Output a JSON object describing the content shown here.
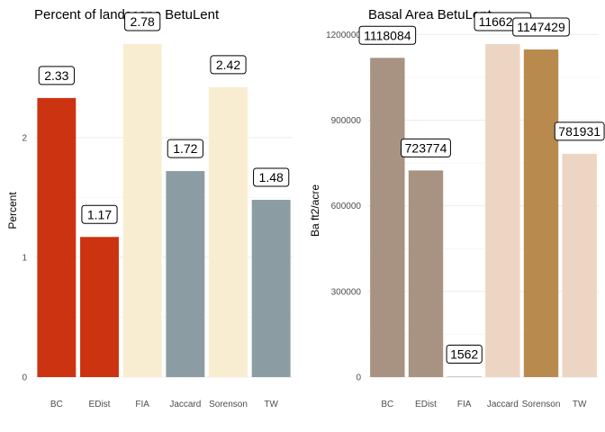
{
  "chart_data": [
    {
      "type": "bar",
      "title": "Percent of landscape  BetuLent",
      "xlabel": "",
      "ylabel": "Percent",
      "categories": [
        "BC",
        "EDist",
        "FIA",
        "Jaccard",
        "Sorenson",
        "TW"
      ],
      "values": [
        2.33,
        1.17,
        2.78,
        1.72,
        2.42,
        1.48
      ],
      "data_labels": [
        "2.33",
        "1.17",
        "2.78",
        "1.72",
        "2.42",
        "1.48"
      ],
      "colors": [
        "#CC3311",
        "#CC3311",
        "#F9EDD1",
        "#8B9DA3",
        "#F9EDD1",
        "#8B9DA3"
      ],
      "ylim": [
        0,
        2.78
      ],
      "yticks": [
        0,
        1,
        2
      ],
      "ytick_labels": [
        "0",
        "1",
        "2"
      ],
      "grid": true,
      "legend": "none"
    },
    {
      "type": "bar",
      "title": "Basal Area  BetuLent",
      "xlabel": "",
      "ylabel": "Ba ft2/acre",
      "categories": [
        "BC",
        "EDist",
        "FIA",
        "Jaccard",
        "Sorenson",
        "TW"
      ],
      "values": [
        1118084,
        723774,
        1562,
        1166233,
        1147429,
        781931
      ],
      "data_labels": [
        "1118084",
        "723774",
        "1562",
        "1166233",
        "1147429",
        "781931"
      ],
      "colors": [
        "#A89282",
        "#A89282",
        "#A89282",
        "#EDD5C3",
        "#B88A4E",
        "#EDD5C3"
      ],
      "ylim": [
        0,
        1166233
      ],
      "yticks": [
        0,
        300000,
        600000,
        900000,
        1200000
      ],
      "ytick_labels": [
        "0",
        "300000",
        "600000",
        "900000",
        "1200000"
      ],
      "grid": true,
      "legend": "none"
    }
  ]
}
